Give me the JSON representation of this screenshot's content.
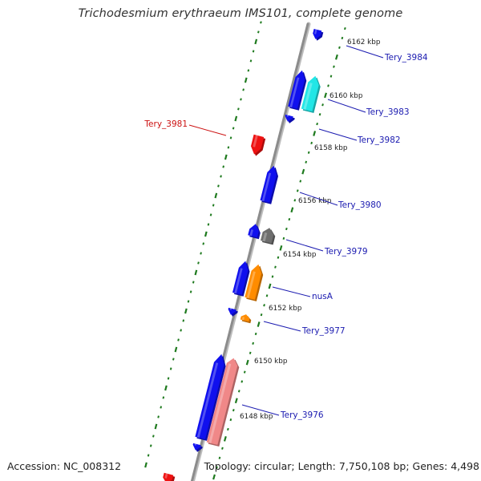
{
  "title": "Trichodesmium erythraeum IMS101, complete genome",
  "accession": "Accession: NC_008312",
  "summary": "Topology: circular; Length: 7,750,108 bp; Genes: 4,498",
  "colors": {
    "backbone": "#8c8c8c",
    "ticks": "#1e7a1e",
    "label_blue": "#1a1ab0",
    "label_red": "#cc1111",
    "scale_text": "#222222"
  },
  "scale_labels": [
    {
      "id": "6162",
      "text": "6162 kbp"
    },
    {
      "id": "6160",
      "text": "6160 kbp"
    },
    {
      "id": "6158",
      "text": "6158 kbp"
    },
    {
      "id": "6156",
      "text": "6156 kbp"
    },
    {
      "id": "6154",
      "text": "6154 kbp"
    },
    {
      "id": "6152",
      "text": "6152 kbp"
    },
    {
      "id": "6150",
      "text": "6150 kbp"
    },
    {
      "id": "6148",
      "text": "6148 kbp"
    }
  ],
  "gene_labels": [
    {
      "id": "tery-3984",
      "text": "Tery_3984",
      "color": "#1a1ab0"
    },
    {
      "id": "tery-3983",
      "text": "Tery_3983",
      "color": "#1a1ab0"
    },
    {
      "id": "tery-3982",
      "text": "Tery_3982",
      "color": "#1a1ab0"
    },
    {
      "id": "tery-3981",
      "text": "Tery_3981",
      "color": "#cc1111"
    },
    {
      "id": "tery-3980",
      "text": "Tery_3980",
      "color": "#1a1ab0"
    },
    {
      "id": "tery-3979",
      "text": "Tery_3979",
      "color": "#1a1ab0"
    },
    {
      "id": "nusa",
      "text": "nusA",
      "color": "#1a1ab0"
    },
    {
      "id": "tery-3977",
      "text": "Tery_3977",
      "color": "#1a1ab0"
    },
    {
      "id": "tery-3976",
      "text": "Tery_3976",
      "color": "#1a1ab0"
    }
  ],
  "features": [
    {
      "id": "f1",
      "color": "#1010ee",
      "strand": "reverse"
    },
    {
      "id": "f2",
      "color": "#1010ee",
      "strand": "forward"
    },
    {
      "id": "f3",
      "color": "#22e6e6",
      "strand": "forward"
    },
    {
      "id": "f4",
      "color": "#1010ee",
      "strand": "reverse"
    },
    {
      "id": "f5",
      "color": "#ee1111",
      "strand": "reverse"
    },
    {
      "id": "f6",
      "color": "#1010ee",
      "strand": "forward"
    },
    {
      "id": "f7",
      "color": "#1010ee",
      "strand": "forward"
    },
    {
      "id": "f8",
      "color": "#6e6e6e",
      "strand": "forward"
    },
    {
      "id": "f9",
      "color": "#1010ee",
      "strand": "forward"
    },
    {
      "id": "f10",
      "color": "#ff8c00",
      "strand": "forward"
    },
    {
      "id": "f11",
      "color": "#1010ee",
      "strand": "reverse"
    },
    {
      "id": "f12",
      "color": "#ff8c00",
      "strand": "forward"
    },
    {
      "id": "f13",
      "color": "#1010ee",
      "strand": "forward"
    },
    {
      "id": "f14",
      "color": "#f08888",
      "strand": "forward"
    },
    {
      "id": "f15",
      "color": "#1010ee",
      "strand": "reverse"
    },
    {
      "id": "f16",
      "color": "#ee1111",
      "strand": "reverse"
    }
  ]
}
